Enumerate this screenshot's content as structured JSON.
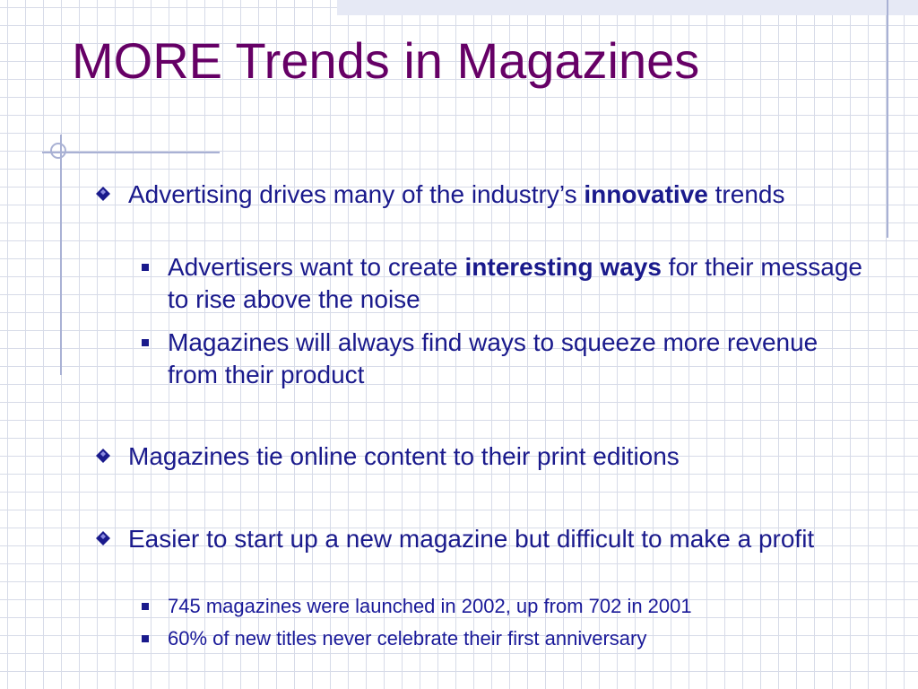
{
  "slide": {
    "title": "MORE Trends in Magazines",
    "bullets": [
      {
        "pre": "Advertising drives many of the industry’s ",
        "bold": "innovative",
        "post": " trends",
        "sub": [
          {
            "pre": "Advertisers want to create ",
            "bold": "interesting ways",
            "post": " for their message to rise above the noise"
          },
          {
            "text": "Magazines will always find ways to squeeze  more revenue from their product"
          }
        ]
      },
      {
        "text": "Magazines tie online content to their print editions"
      },
      {
        "text": "Easier to start up a new magazine but difficult to make a profit",
        "sub": [
          {
            "text": "745 magazines were launched in 2002, up from 702 in 2001"
          },
          {
            "text": "60% of new titles never celebrate their first anniversary"
          }
        ]
      }
    ]
  },
  "colors": {
    "title": "#660066",
    "body_text": "#1a1a8c",
    "grid_line": "#d7dbe8",
    "accent_line": "#a9b1d4"
  },
  "icons": {
    "level1_bullet": "diamond-bullet-icon",
    "level2_bullet": "square-bullet-icon"
  }
}
